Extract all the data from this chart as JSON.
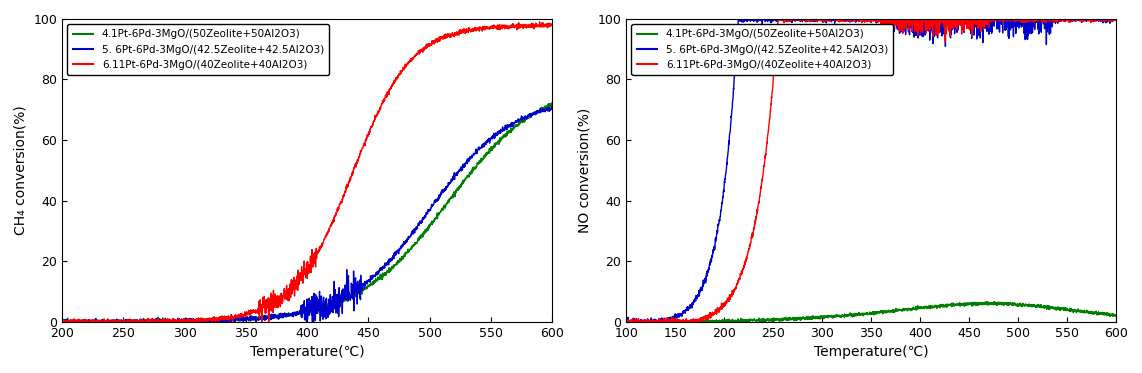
{
  "left_chart": {
    "xlabel": "Temperature(℃)",
    "ylabel": "CH₄ conversion(%)",
    "xlim": [
      200,
      600
    ],
    "ylim": [
      0,
      100
    ],
    "xticks": [
      200,
      250,
      300,
      350,
      400,
      450,
      500,
      550,
      600
    ],
    "yticks": [
      0,
      20,
      40,
      60,
      80,
      100
    ],
    "legend": [
      "4.1Pt-6Pd-3MgO/(50Zeolite+50Al2O3)",
      "5. 6Pt-6Pd-3MgO/(42.5Zeolite+42.5Al2O3)",
      "6.11Pt-6Pd-3MgO/(40Zeolite+40Al2O3)"
    ],
    "colors": [
      "#008000",
      "#0000CD",
      "#FF0000"
    ]
  },
  "right_chart": {
    "xlabel": "Temperature(℃)",
    "ylabel": "NO conversion(%)",
    "xlim": [
      100,
      600
    ],
    "ylim": [
      0,
      100
    ],
    "xticks": [
      100,
      150,
      200,
      250,
      300,
      350,
      400,
      450,
      500,
      550,
      600
    ],
    "yticks": [
      0,
      20,
      40,
      60,
      80,
      100
    ],
    "legend": [
      "4.1Pt-6Pd-3MgO/(50Zeolite+50Al2O3)",
      "5. 6Pt-6Pd-3MgO/(42.5Zeolite+42.5Al2O3)",
      "6.11Pt-6Pd-3MgO/(40Zeolite+40Al2O3)"
    ],
    "colors": [
      "#008000",
      "#0000CD",
      "#FF0000"
    ]
  }
}
